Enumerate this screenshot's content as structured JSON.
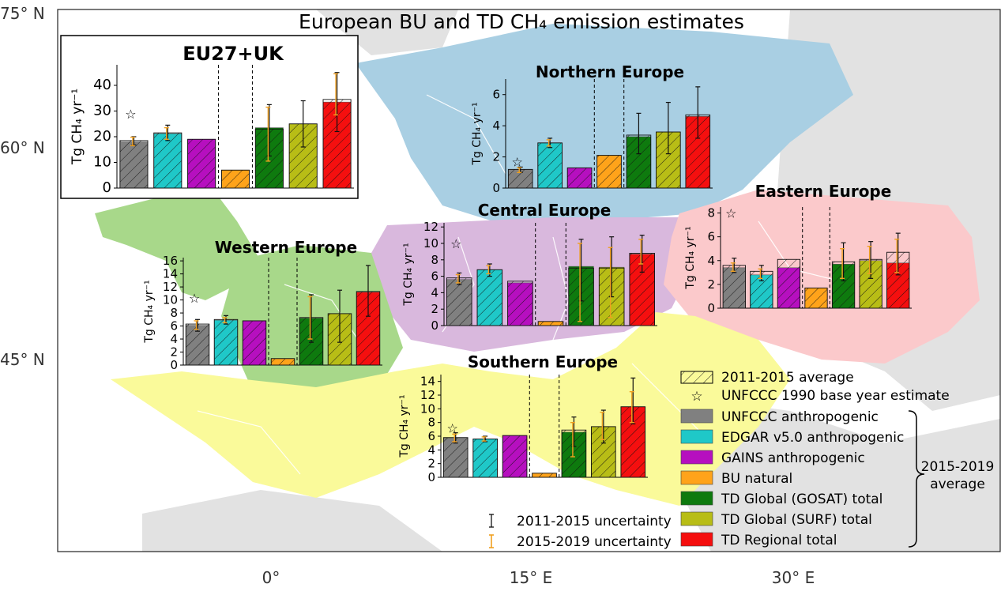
{
  "title": "European BU and TD CH₄ emission estimates",
  "map": {
    "lat_labels": [
      "75° N",
      "60° N",
      "45° N"
    ],
    "lon_labels": [
      "0°",
      "15° E",
      "30° E"
    ],
    "region_colors": {
      "northern": "#a9cfe3",
      "central": "#d9b8dd",
      "eastern": "#fbc9cb",
      "western": "#a8d88a",
      "southern": "#fafa9a",
      "uk": "#a8d88a",
      "other": "#e2e2e2"
    }
  },
  "legend": {
    "hatch_label": "2011-2015 average",
    "star_label": "UNFCCC 1990 base year estimate",
    "unc_2011_label": "2011-2015 uncertainty",
    "unc_2015_label": "2015-2019 uncertainty",
    "brace_label": "2015-2019 average",
    "series": [
      {
        "name": "UNFCCC anthropogenic",
        "color": "#808080"
      },
      {
        "name": "EDGAR v5.0 anthropogenic",
        "color": "#1fc8c8"
      },
      {
        "name": "GAINS anthropogenic",
        "color": "#b60fbf"
      },
      {
        "name": "BU natural",
        "color": "#ffa31a"
      },
      {
        "name": "TD Global (GOSAT) total",
        "color": "#0e7a0e"
      },
      {
        "name": "TD Global (SURF) total",
        "color": "#b8bd16"
      },
      {
        "name": "TD Regional total",
        "color": "#f50f0f"
      }
    ]
  },
  "chart_data": [
    {
      "type": "bar",
      "title": "EU27+UK",
      "ylabel": "Tg CH₄ yr⁻¹",
      "ylim": [
        0,
        48
      ],
      "yticks": [
        0,
        10,
        20,
        30,
        40
      ],
      "star": 29,
      "avg2015_2019": [
        18.0,
        21.2,
        19.0,
        7.0,
        23.5,
        25.0,
        33.5
      ],
      "avg2011_2015": [
        18.5,
        21.5,
        19.0,
        7.0,
        23.0,
        25.0,
        34.5
      ],
      "unc2011_2015": [
        [
          16.8,
          20.0
        ],
        [
          18.5,
          24.5
        ],
        null,
        null,
        [
          12.5,
          32.5
        ],
        [
          16.0,
          34.0
        ],
        [
          22.0,
          45.0
        ]
      ],
      "unc2015_2019": [
        [
          16.5,
          19.8
        ],
        [
          19.0,
          23.5
        ],
        null,
        null,
        [
          10.5,
          31.5
        ],
        null,
        [
          28.5,
          44.5
        ]
      ]
    },
    {
      "type": "bar",
      "title": "Northern Europe",
      "ylabel": "Tg CH₄ yr⁻¹",
      "ylim": [
        0,
        7
      ],
      "yticks": [
        0,
        2,
        4,
        6
      ],
      "star": 1.7,
      "avg2015_2019": [
        1.2,
        2.9,
        1.3,
        2.1,
        3.3,
        3.6,
        4.6
      ],
      "avg2011_2015": [
        1.2,
        2.9,
        1.3,
        2.1,
        3.4,
        3.6,
        4.7
      ],
      "unc2011_2015": [
        [
          1.0,
          1.35
        ],
        [
          2.6,
          3.2
        ],
        null,
        null,
        [
          2.2,
          4.8
        ],
        [
          2.2,
          5.5
        ],
        [
          3.2,
          6.5
        ]
      ],
      "unc2015_2019": [
        [
          1.0,
          1.3
        ],
        [
          2.7,
          3.1
        ],
        null,
        null,
        null,
        null,
        null
      ]
    },
    {
      "type": "bar",
      "title": "Central Europe",
      "ylabel": "Tg CH₄ yr⁻¹",
      "ylim": [
        0,
        12.5
      ],
      "yticks": [
        0,
        2,
        4,
        6,
        8,
        10,
        12
      ],
      "star": 10,
      "avg2015_2019": [
        5.6,
        6.8,
        5.2,
        0.5,
        7.2,
        7.1,
        8.7
      ],
      "avg2011_2015": [
        5.8,
        6.8,
        5.4,
        0.5,
        7.0,
        7.0,
        8.8
      ],
      "unc2011_2015": [
        [
          5.0,
          6.4
        ],
        [
          6.0,
          7.5
        ],
        null,
        null,
        [
          3.0,
          10.5
        ],
        [
          3.5,
          10.8
        ],
        [
          6.5,
          11.0
        ]
      ],
      "unc2015_2019": [
        [
          5.2,
          6.2
        ],
        [
          6.3,
          7.3
        ],
        null,
        null,
        [
          0.5,
          10.0
        ],
        [
          1.0,
          9.5
        ],
        [
          7.5,
          10.5
        ]
      ]
    },
    {
      "type": "bar",
      "title": "Eastern Europe",
      "ylabel": "Tg CH₄ yr⁻¹",
      "ylim": [
        0,
        8.5
      ],
      "yticks": [
        0,
        2,
        4,
        6,
        8
      ],
      "star": 8.0,
      "avg2015_2019": [
        3.4,
        2.8,
        3.4,
        1.7,
        3.7,
        4.0,
        3.8
      ],
      "avg2011_2015": [
        3.6,
        3.1,
        4.1,
        1.7,
        3.9,
        4.1,
        4.7
      ],
      "unc2011_2015": [
        [
          3.0,
          4.2
        ],
        [
          2.3,
          3.6
        ],
        null,
        null,
        [
          2.3,
          5.5
        ],
        [
          2.5,
          5.6
        ],
        [
          2.8,
          6.3
        ]
      ],
      "unc2015_2019": [
        [
          3.1,
          3.8
        ],
        [
          2.5,
          3.3
        ],
        null,
        null,
        [
          2.5,
          5.0
        ],
        [
          2.9,
          5.2
        ],
        [
          3.0,
          5.8
        ]
      ]
    },
    {
      "type": "bar",
      "title": "Western Europe",
      "ylabel": "Tg CH₄ yr⁻¹",
      "ylim": [
        0,
        16.5
      ],
      "yticks": [
        0,
        2,
        4,
        6,
        8,
        10,
        12,
        14,
        16
      ],
      "star": 10.3,
      "avg2015_2019": [
        6.1,
        6.9,
        6.8,
        1.0,
        7.2,
        7.9,
        11.2
      ],
      "avg2011_2015": [
        6.3,
        7.0,
        6.8,
        1.0,
        7.3,
        7.9,
        11.3
      ],
      "unc2011_2015": [
        [
          5.2,
          7.0
        ],
        [
          6.3,
          7.6
        ],
        null,
        null,
        [
          3.5,
          10.8
        ],
        [
          3.5,
          11.5
        ],
        [
          7.5,
          15.3
        ]
      ],
      "unc2015_2019": [
        [
          5.5,
          6.8
        ],
        [
          6.5,
          7.3
        ],
        null,
        null,
        [
          4.0,
          10.5
        ],
        null,
        null
      ]
    },
    {
      "type": "bar",
      "title": "Southern Europe",
      "ylabel": "Tg CH₄ yr⁻¹",
      "ylim": [
        0,
        15
      ],
      "yticks": [
        0,
        2,
        4,
        6,
        8,
        10,
        12,
        14
      ],
      "star": 7.2,
      "avg2015_2019": [
        5.7,
        5.6,
        6.1,
        0.6,
        6.6,
        7.4,
        10.3
      ],
      "avg2011_2015": [
        5.8,
        5.6,
        6.1,
        0.6,
        6.9,
        7.4,
        10.3
      ],
      "unc2011_2015": [
        [
          5.0,
          6.5
        ],
        [
          5.2,
          6.0
        ],
        null,
        null,
        [
          4.5,
          8.8
        ],
        [
          5.0,
          9.8
        ],
        [
          7.8,
          14.5
        ]
      ],
      "unc2015_2019": [
        [
          5.2,
          6.3
        ],
        [
          5.3,
          5.9
        ],
        null,
        null,
        [
          3.0,
          8.0
        ],
        [
          5.5,
          9.5
        ],
        [
          8.0,
          12.5
        ]
      ]
    }
  ]
}
